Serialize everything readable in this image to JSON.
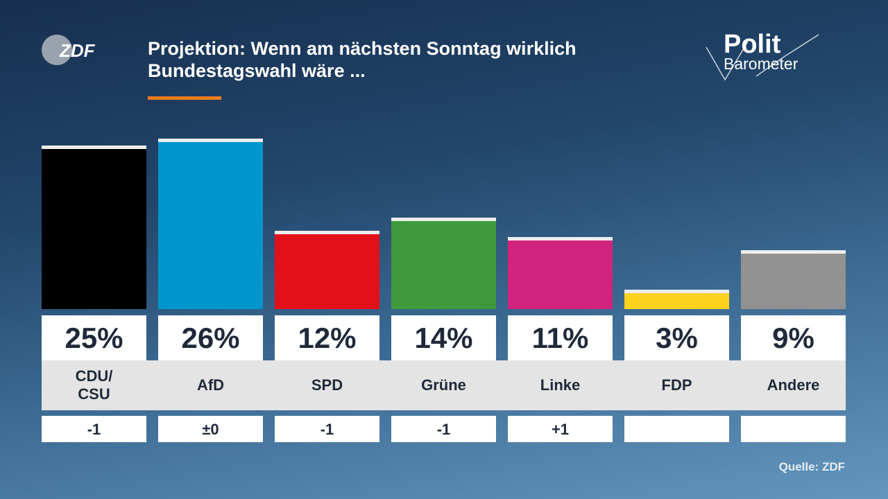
{
  "chart_data": {
    "type": "bar",
    "title": "Projektion: Wenn am nächsten Sonntag wirklich Bundestagswahl wäre ...",
    "brand": "ZDF",
    "logo": [
      "Polit",
      "Barometer"
    ],
    "categories": [
      "CDU/\nCSU",
      "AfD",
      "SPD",
      "Grüne",
      "Linke",
      "FDP",
      "Andere"
    ],
    "values": [
      25,
      26,
      12,
      14,
      11,
      3,
      9
    ],
    "value_labels": [
      "25%",
      "26%",
      "12%",
      "14%",
      "11%",
      "3%",
      "9%"
    ],
    "colors": [
      "#000000",
      "#0096cc",
      "#e3101a",
      "#3f9a3c",
      "#d0247e",
      "#fcd21c",
      "#929292"
    ],
    "changes": [
      "-1",
      "±0",
      "-1",
      "-1",
      "+1",
      null,
      null
    ],
    "source": "Quelle: ZDF"
  }
}
